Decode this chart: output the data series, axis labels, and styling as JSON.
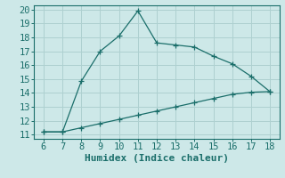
{
  "xlabel": "Humidex (Indice chaleur)",
  "ylabel": "",
  "background_color": "#cde8e8",
  "line_color": "#1a6e6a",
  "grid_color": "#aed0d0",
  "x_upper": [
    6,
    7,
    8,
    9,
    10,
    11,
    12,
    13,
    14,
    15,
    16,
    17,
    18
  ],
  "y_upper": [
    11.2,
    11.2,
    14.85,
    17.0,
    18.1,
    19.9,
    17.6,
    17.45,
    17.3,
    16.65,
    16.1,
    15.2,
    14.1
  ],
  "x_lower": [
    6,
    7,
    8,
    9,
    10,
    11,
    12,
    13,
    14,
    15,
    16,
    17,
    18
  ],
  "y_lower": [
    11.2,
    11.2,
    11.5,
    11.8,
    12.1,
    12.4,
    12.7,
    13.0,
    13.3,
    13.6,
    13.9,
    14.05,
    14.1
  ],
  "xlim": [
    5.5,
    18.5
  ],
  "ylim": [
    10.7,
    20.3
  ],
  "xticks": [
    6,
    7,
    8,
    9,
    10,
    11,
    12,
    13,
    14,
    15,
    16,
    17,
    18
  ],
  "yticks": [
    11,
    12,
    13,
    14,
    15,
    16,
    17,
    18,
    19,
    20
  ],
  "fontsize": 7.5,
  "xlabel_fontsize": 8,
  "marker": "+",
  "markersize": 4,
  "linewidth": 0.9
}
